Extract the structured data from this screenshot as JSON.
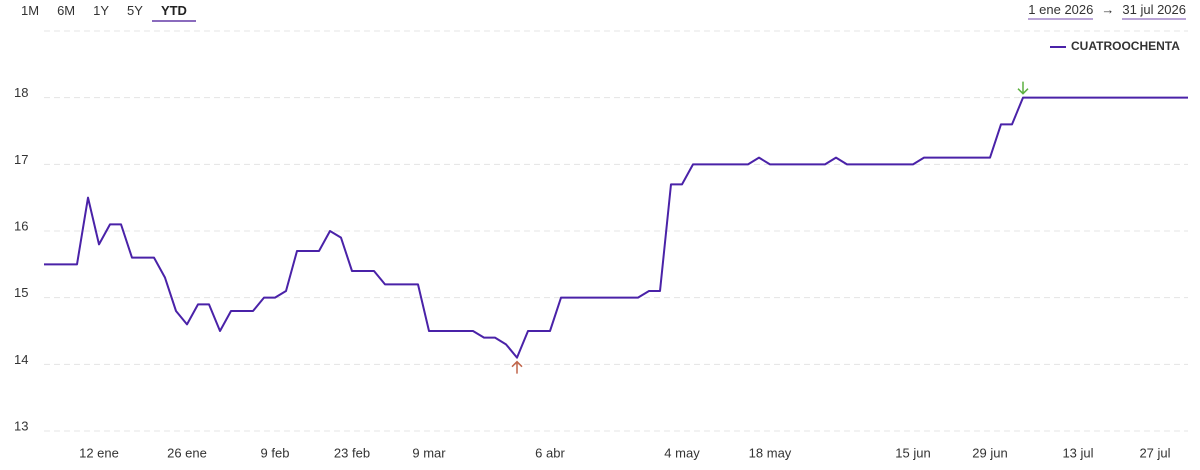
{
  "toolbar": {
    "ranges": [
      "1M",
      "6M",
      "1Y",
      "5Y",
      "YTD"
    ],
    "active_range": 4
  },
  "date_range": {
    "from": "1 ene 2026",
    "separator": "→",
    "to": "31 jul 2026"
  },
  "chart_data": {
    "type": "line",
    "categories": [
      null,
      null,
      null,
      null,
      null,
      "12 ene",
      null,
      null,
      null,
      null,
      null,
      null,
      null,
      "26 ene",
      null,
      null,
      null,
      null,
      null,
      null,
      null,
      "9 feb",
      null,
      null,
      null,
      null,
      null,
      null,
      "23 feb",
      null,
      null,
      null,
      null,
      null,
      null,
      "9 mar",
      null,
      null,
      null,
      null,
      null,
      null,
      null,
      null,
      null,
      null,
      "6 abr",
      null,
      null,
      null,
      null,
      null,
      null,
      null,
      null,
      null,
      null,
      null,
      "4 may",
      null,
      null,
      null,
      null,
      null,
      null,
      null,
      "18 may",
      null,
      null,
      null,
      null,
      null,
      null,
      null,
      null,
      null,
      null,
      null,
      null,
      "15 jun",
      null,
      null,
      null,
      null,
      null,
      null,
      "29 jun",
      null,
      null,
      null,
      null,
      null,
      null,
      null,
      "13 jul",
      null,
      null,
      null,
      null,
      null,
      null,
      "27 jul",
      null,
      null,
      null
    ],
    "series": [
      {
        "name": "CUATROOCHENTA",
        "color": "#4a22a8",
        "values": [
          15.5,
          15.5,
          15.5,
          15.5,
          16.5,
          15.8,
          16.1,
          16.1,
          15.6,
          15.6,
          15.6,
          15.3,
          14.8,
          14.6,
          14.9,
          14.9,
          14.5,
          14.8,
          14.8,
          14.8,
          15.0,
          15.0,
          15.1,
          15.7,
          15.7,
          15.7,
          16.0,
          15.9,
          15.4,
          15.4,
          15.4,
          15.2,
          15.2,
          15.2,
          15.2,
          14.5,
          14.5,
          14.5,
          14.5,
          14.5,
          14.4,
          14.4,
          14.3,
          14.1,
          14.5,
          14.5,
          14.5,
          15.0,
          15.0,
          15.0,
          15.0,
          15.0,
          15.0,
          15.0,
          15.0,
          15.1,
          15.1,
          16.7,
          16.7,
          17.0,
          17.0,
          17.0,
          17.0,
          17.0,
          17.0,
          17.1,
          17.0,
          17.0,
          17.0,
          17.0,
          17.0,
          17.0,
          17.1,
          17.0,
          17.0,
          17.0,
          17.0,
          17.0,
          17.0,
          17.0,
          17.1,
          17.1,
          17.1,
          17.1,
          17.1,
          17.1,
          17.1,
          17.6,
          17.6,
          18.0,
          18.0,
          18.0,
          18.0,
          18.0,
          18.0,
          18.0,
          18.0,
          18.0,
          18.0,
          18.0,
          18.0,
          18.0,
          18.0,
          18.0,
          18.0
        ]
      }
    ],
    "ylim": [
      13,
      19
    ],
    "yticks": [
      13,
      14,
      15,
      16,
      17,
      18
    ],
    "grid": true,
    "legend": "top-right",
    "max_marker_color": "#5cb040",
    "min_marker_color": "#c0654a"
  }
}
